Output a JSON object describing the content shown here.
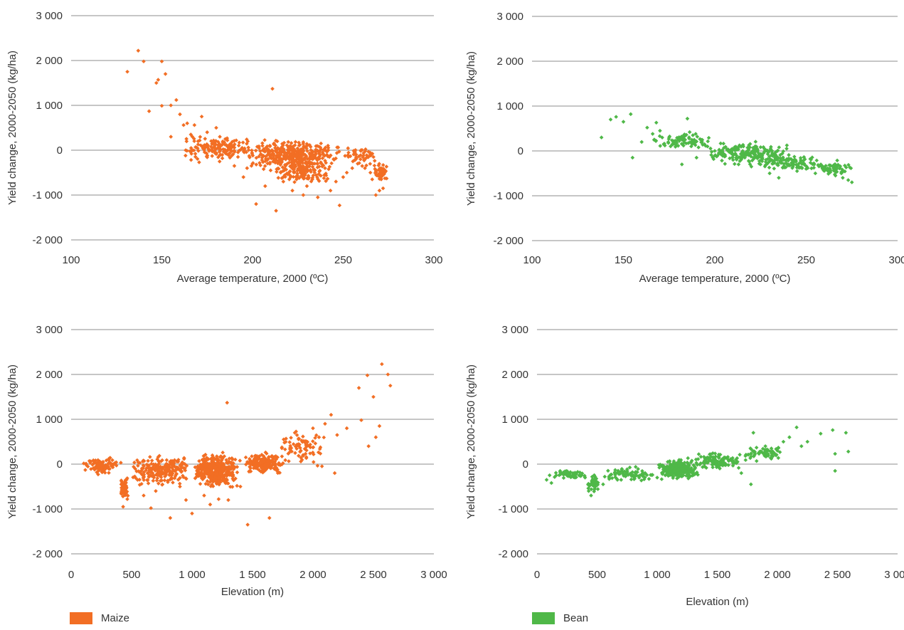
{
  "colors": {
    "maize": "#f26e24",
    "bean": "#4fb848",
    "grid": "#b3b3b3",
    "text": "#333333"
  },
  "legend": {
    "maize": "Maize",
    "bean": "Bean"
  },
  "chart_data": [
    {
      "type": "scatter",
      "id": "maize_temp",
      "series_name": "Maize",
      "color": "#f26e24",
      "xlabel": "Average temperature, 2000 (ºC)",
      "ylabel": "Yield change, 2000-2050 (kg/ha)",
      "xlim": [
        100,
        300
      ],
      "ylim": [
        -2000,
        3000
      ],
      "xticks": [
        100,
        150,
        200,
        250,
        300
      ],
      "xtick_labels": [
        "100",
        "150",
        "200",
        "250",
        "300"
      ],
      "yticks": [
        -2000,
        -1000,
        0,
        1000,
        2000,
        3000
      ],
      "ytick_labels": [
        "-2 000",
        "-1 000",
        "0",
        "1 000",
        "2 000",
        "3 000"
      ],
      "grid": "horizontal",
      "points": [
        [
          131,
          1750
        ],
        [
          137,
          2220
        ],
        [
          140,
          1980
        ],
        [
          143,
          870
        ],
        [
          147,
          1500
        ],
        [
          148,
          1570
        ],
        [
          150,
          1980
        ],
        [
          152,
          1700
        ],
        [
          150,
          990
        ],
        [
          155,
          1000
        ],
        [
          155,
          300
        ],
        [
          158,
          1120
        ],
        [
          160,
          800
        ],
        [
          162,
          560
        ],
        [
          164,
          600
        ],
        [
          166,
          350
        ],
        [
          168,
          560
        ],
        [
          170,
          200
        ],
        [
          172,
          750
        ],
        [
          175,
          400
        ],
        [
          178,
          150
        ],
        [
          180,
          500
        ],
        [
          182,
          300
        ],
        [
          185,
          250
        ],
        [
          188,
          100
        ],
        [
          190,
          -350
        ],
        [
          192,
          -150
        ],
        [
          195,
          -600
        ],
        [
          197,
          -400
        ],
        [
          200,
          -300
        ],
        [
          202,
          -1200
        ],
        [
          205,
          -100
        ],
        [
          207,
          -800
        ],
        [
          210,
          -450
        ],
        [
          211,
          1370
        ],
        [
          213,
          -1350
        ],
        [
          215,
          -100
        ],
        [
          217,
          -700
        ],
        [
          220,
          -500
        ],
        [
          222,
          -900
        ],
        [
          225,
          -300
        ],
        [
          228,
          -1000
        ],
        [
          230,
          -800
        ],
        [
          233,
          -650
        ],
        [
          236,
          -1050
        ],
        [
          238,
          -300
        ],
        [
          240,
          -400
        ],
        [
          243,
          -900
        ],
        [
          246,
          -700
        ],
        [
          248,
          -1230
        ],
        [
          250,
          -600
        ],
        [
          252,
          -500
        ],
        [
          255,
          -400
        ],
        [
          258,
          -300
        ],
        [
          262,
          -400
        ],
        [
          265,
          -500
        ],
        [
          268,
          -1000
        ],
        [
          270,
          -900
        ],
        [
          266,
          -650
        ],
        [
          272,
          -850
        ]
      ],
      "clusters": [
        {
          "x": [
            160,
            200
          ],
          "y": [
            -300,
            400
          ],
          "n": 150
        },
        {
          "x": [
            195,
            250
          ],
          "y": [
            -500,
            300
          ],
          "n": 380
        },
        {
          "x": [
            210,
            245
          ],
          "y": [
            -800,
            -200
          ],
          "n": 120
        },
        {
          "x": [
            250,
            268
          ],
          "y": [
            -400,
            150
          ],
          "n": 50
        },
        {
          "x": [
            267,
            275
          ],
          "y": [
            -750,
            -250
          ],
          "n": 60
        }
      ]
    },
    {
      "type": "scatter",
      "id": "bean_temp",
      "series_name": "Bean",
      "color": "#4fb848",
      "xlabel": "Average temperature, 2000 (ºC)",
      "ylabel": "Yield change, 2000-2050 (kg/ha)",
      "xlim": [
        100,
        300
      ],
      "ylim": [
        -2000,
        3000
      ],
      "xticks": [
        100,
        150,
        200,
        250,
        300
      ],
      "xtick_labels": [
        "100",
        "150",
        "200",
        "250",
        "300"
      ],
      "yticks": [
        -2000,
        -1000,
        0,
        1000,
        2000,
        3000
      ],
      "ytick_labels": [
        "-2 000",
        "-1 000",
        "0",
        "1 000",
        "2 000",
        "3 000"
      ],
      "grid": "horizontal",
      "points": [
        [
          138,
          300
        ],
        [
          143,
          700
        ],
        [
          146,
          760
        ],
        [
          150,
          650
        ],
        [
          154,
          820
        ],
        [
          155,
          -150
        ],
        [
          160,
          200
        ],
        [
          163,
          520
        ],
        [
          166,
          380
        ],
        [
          168,
          630
        ],
        [
          170,
          450
        ],
        [
          172,
          150
        ],
        [
          175,
          300
        ],
        [
          180,
          250
        ],
        [
          182,
          -300
        ],
        [
          185,
          720
        ],
        [
          188,
          350
        ],
        [
          190,
          -150
        ],
        [
          193,
          200
        ],
        [
          196,
          100
        ],
        [
          200,
          0
        ],
        [
          205,
          -100
        ],
        [
          210,
          -200
        ],
        [
          213,
          -300
        ],
        [
          220,
          -350
        ],
        [
          225,
          -300
        ],
        [
          230,
          -500
        ],
        [
          235,
          -600
        ],
        [
          240,
          -300
        ],
        [
          245,
          -450
        ],
        [
          250,
          -400
        ],
        [
          255,
          -500
        ],
        [
          258,
          -300
        ],
        [
          262,
          -450
        ],
        [
          266,
          -550
        ],
        [
          270,
          -600
        ],
        [
          273,
          -650
        ],
        [
          275,
          -700
        ]
      ],
      "clusters": [
        {
          "x": [
            165,
            200
          ],
          "y": [
            0,
            450
          ],
          "n": 80
        },
        {
          "x": [
            195,
            245
          ],
          "y": [
            -350,
            250
          ],
          "n": 200
        },
        {
          "x": [
            225,
            260
          ],
          "y": [
            -500,
            -50
          ],
          "n": 100
        },
        {
          "x": [
            255,
            275
          ],
          "y": [
            -600,
            -200
          ],
          "n": 60
        }
      ]
    },
    {
      "type": "scatter",
      "id": "maize_elev",
      "series_name": "Maize",
      "color": "#f26e24",
      "xlabel": "Elevation (m)",
      "ylabel": "Yield change, 2000-2050 (kg/ha)",
      "xlim": [
        0,
        3000
      ],
      "ylim": [
        -2000,
        3000
      ],
      "xticks": [
        0,
        500,
        1000,
        1500,
        2000,
        2500,
        3000
      ],
      "xtick_labels": [
        "0",
        "500",
        "1 000",
        "1 500",
        "2 000",
        "2 500",
        "3 000"
      ],
      "yticks": [
        -2000,
        -1000,
        0,
        1000,
        2000,
        3000
      ],
      "ytick_labels": [
        "-2 000",
        "-1 000",
        "0",
        "1 000",
        "2 000",
        "3 000"
      ],
      "grid": "horizontal",
      "points": [
        [
          2570,
          2230
        ],
        [
          2450,
          1980
        ],
        [
          2620,
          2000
        ],
        [
          2640,
          1750
        ],
        [
          2380,
          1700
        ],
        [
          2500,
          1500
        ],
        [
          2400,
          980
        ],
        [
          2550,
          850
        ],
        [
          2520,
          600
        ],
        [
          2460,
          400
        ],
        [
          2280,
          800
        ],
        [
          2200,
          650
        ],
        [
          2150,
          1100
        ],
        [
          2100,
          900
        ],
        [
          2050,
          600
        ],
        [
          2000,
          800
        ],
        [
          1950,
          500
        ],
        [
          1900,
          300
        ],
        [
          1850,
          700
        ],
        [
          2180,
          -200
        ],
        [
          1290,
          1370
        ],
        [
          1460,
          -1350
        ],
        [
          1640,
          -1200
        ],
        [
          820,
          -1200
        ],
        [
          1000,
          -1100
        ],
        [
          430,
          -950
        ],
        [
          660,
          -980
        ],
        [
          1150,
          -900
        ],
        [
          1300,
          -800
        ],
        [
          1100,
          -700
        ],
        [
          950,
          -800
        ],
        [
          1220,
          -780
        ],
        [
          700,
          -600
        ],
        [
          600,
          -700
        ],
        [
          900,
          -500
        ],
        [
          1400,
          -500
        ],
        [
          800,
          -400
        ]
      ],
      "clusters": [
        {
          "x": [
            80,
            420
          ],
          "y": [
            -250,
            200
          ],
          "n": 100
        },
        {
          "x": [
            400,
            480
          ],
          "y": [
            -900,
            -200
          ],
          "n": 50
        },
        {
          "x": [
            480,
            1000
          ],
          "y": [
            -550,
            300
          ],
          "n": 220
        },
        {
          "x": [
            1000,
            1400
          ],
          "y": [
            -600,
            300
          ],
          "n": 400
        },
        {
          "x": [
            1400,
            1800
          ],
          "y": [
            -300,
            350
          ],
          "n": 180
        },
        {
          "x": [
            1700,
            2100
          ],
          "y": [
            -100,
            800
          ],
          "n": 80
        }
      ]
    },
    {
      "type": "scatter",
      "id": "bean_elev",
      "series_name": "Bean",
      "color": "#4fb848",
      "xlabel": "Elevation (m)",
      "ylabel": "Yield change, 2000-2050 (kg/ha)",
      "xlim": [
        0,
        3000
      ],
      "ylim": [
        -2000,
        3000
      ],
      "xticks": [
        0,
        500,
        1000,
        1500,
        2000,
        2500,
        3000
      ],
      "xtick_labels": [
        "0",
        "500",
        "1 000",
        "1 500",
        "2 000",
        "2 500",
        "3 000"
      ],
      "yticks": [
        -2000,
        -1000,
        0,
        1000,
        2000,
        3000
      ],
      "ytick_labels": [
        "-2 000",
        "-1 000",
        "0",
        "1 000",
        "2 000",
        "3 000"
      ],
      "grid": "horizontal",
      "points": [
        [
          80,
          -350
        ],
        [
          120,
          -420
        ],
        [
          160,
          -250
        ],
        [
          200,
          -200
        ],
        [
          250,
          -180
        ],
        [
          300,
          -200
        ],
        [
          350,
          -250
        ],
        [
          400,
          -300
        ],
        [
          430,
          -600
        ],
        [
          450,
          -700
        ],
        [
          480,
          -550
        ],
        [
          500,
          -400
        ],
        [
          550,
          -450
        ],
        [
          600,
          -300
        ],
        [
          700,
          -350
        ],
        [
          800,
          -250
        ],
        [
          900,
          -200
        ],
        [
          1000,
          -300
        ],
        [
          1100,
          -200
        ],
        [
          1800,
          700
        ],
        [
          1900,
          400
        ],
        [
          1950,
          350
        ],
        [
          2000,
          300
        ],
        [
          2050,
          500
        ],
        [
          2100,
          600
        ],
        [
          2160,
          820
        ],
        [
          2200,
          400
        ],
        [
          2250,
          500
        ],
        [
          2360,
          680
        ],
        [
          2460,
          760
        ],
        [
          2480,
          -150
        ],
        [
          2480,
          230
        ],
        [
          2570,
          700
        ],
        [
          2590,
          280
        ],
        [
          1780,
          -450
        ],
        [
          1700,
          -200
        ]
      ],
      "clusters": [
        {
          "x": [
            80,
            420
          ],
          "y": [
            -350,
            -100
          ],
          "n": 50
        },
        {
          "x": [
            420,
            520
          ],
          "y": [
            -650,
            -200
          ],
          "n": 40
        },
        {
          "x": [
            520,
            1000
          ],
          "y": [
            -450,
            0
          ],
          "n": 80
        },
        {
          "x": [
            1000,
            1350
          ],
          "y": [
            -400,
            150
          ],
          "n": 260
        },
        {
          "x": [
            1300,
            1700
          ],
          "y": [
            -150,
            300
          ],
          "n": 120
        },
        {
          "x": [
            1700,
            2050
          ],
          "y": [
            0,
            450
          ],
          "n": 60
        }
      ]
    }
  ]
}
